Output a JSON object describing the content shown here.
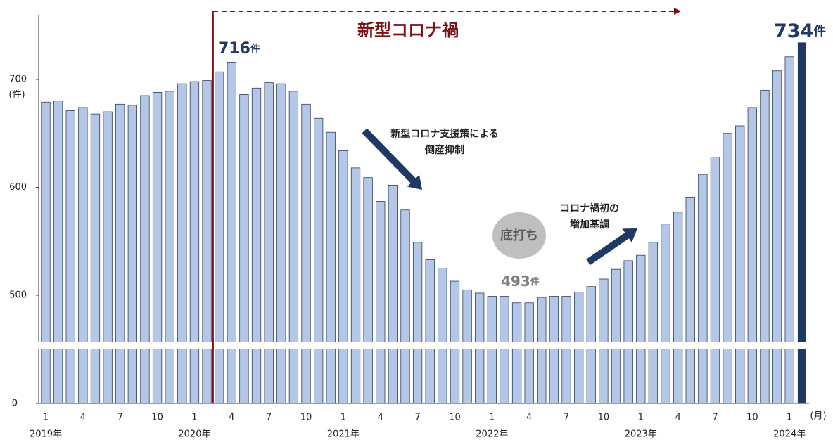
{
  "chart_data": {
    "type": "bar",
    "title": "新型コロナ禍",
    "y_unit": "(件)",
    "x_unit": "(月)",
    "categories": [
      "1",
      null,
      null,
      "4",
      null,
      null,
      "7",
      null,
      null,
      "10",
      null,
      null,
      "1",
      null,
      null,
      "4",
      null,
      null,
      "7",
      null,
      null,
      "10",
      null,
      null,
      "1",
      null,
      null,
      "4",
      null,
      null,
      "7",
      null,
      null,
      "10",
      null,
      null,
      "1",
      null,
      null,
      "4",
      null,
      null,
      "7",
      null,
      null,
      "10",
      null,
      null,
      "1",
      null,
      null,
      "4",
      null,
      null,
      "7",
      null,
      null,
      "10",
      null,
      null,
      "1",
      null
    ],
    "category_years": [
      "2019年",
      null,
      null,
      null,
      null,
      null,
      null,
      null,
      null,
      null,
      null,
      null,
      "2020年",
      null,
      null,
      null,
      null,
      null,
      null,
      null,
      null,
      null,
      null,
      null,
      "2021年",
      null,
      null,
      null,
      null,
      null,
      null,
      null,
      null,
      null,
      null,
      null,
      "2022年",
      null,
      null,
      null,
      null,
      null,
      null,
      null,
      null,
      null,
      null,
      null,
      "2023年",
      null,
      null,
      null,
      null,
      null,
      null,
      null,
      null,
      null,
      null,
      null,
      "2024年",
      null
    ],
    "values": [
      679,
      680,
      671,
      674,
      668,
      670,
      677,
      676,
      685,
      688,
      689,
      696,
      698,
      699,
      707,
      716,
      686,
      692,
      697,
      696,
      689,
      677,
      664,
      651,
      634,
      618,
      609,
      587,
      602,
      579,
      549,
      533,
      525,
      513,
      505,
      502,
      499,
      499,
      493,
      493,
      498,
      499,
      499,
      503,
      508,
      515,
      524,
      532,
      537,
      549,
      566,
      577,
      591,
      612,
      628,
      650,
      657,
      674,
      690,
      708,
      721,
      734
    ],
    "value_labels": [
      null,
      null,
      null,
      null,
      null,
      null,
      null,
      null,
      null,
      null,
      null,
      null,
      null,
      null,
      null,
      "716件",
      null,
      null,
      null,
      null,
      null,
      null,
      null,
      null,
      null,
      null,
      null,
      null,
      null,
      null,
      null,
      null,
      null,
      null,
      null,
      null,
      null,
      null,
      "493件",
      null,
      null,
      null,
      null,
      null,
      null,
      null,
      null,
      null,
      null,
      null,
      null,
      null,
      null,
      null,
      null,
      null,
      null,
      null,
      null,
      null,
      null,
      "734件"
    ],
    "color": "#b4c7e7",
    "edge_color": "#2f3f5f",
    "highlight": {
      "index": 61,
      "color": "#1f3864"
    },
    "ylim": [
      0,
      760
    ],
    "yticks": [
      0,
      500,
      600,
      700
    ],
    "axis_break": true,
    "annotations": {
      "support": [
        "新型コロナ支援策による",
        "倒産抑制"
      ],
      "rise": [
        "コロナ禍初の",
        "増加基調"
      ],
      "bottom": "底打ち"
    }
  }
}
